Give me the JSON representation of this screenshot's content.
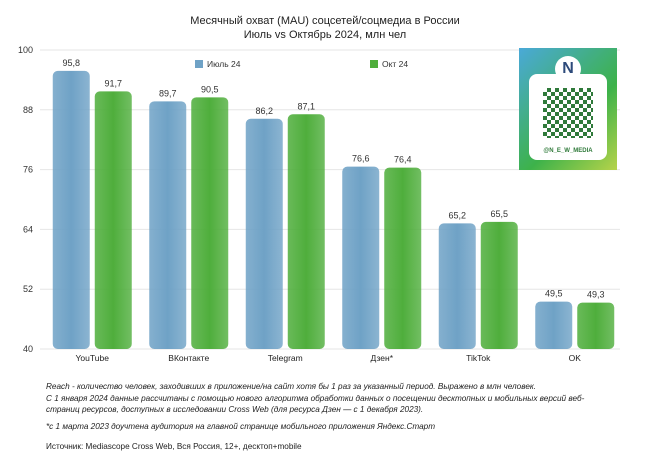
{
  "chart_data": {
    "type": "bar",
    "title": "Месячный охват (MAU) соцсетей/соцмедиа в России",
    "subtitle": "Июль vs Октябрь 2024, млн чел",
    "categories": [
      "YouTube",
      "ВКонтакте",
      "Telegram",
      "Дзен*",
      "TikTok",
      "OK"
    ],
    "series": [
      {
        "name": "Июль 24",
        "color": "#6fa2c6",
        "values": [
          95.8,
          89.7,
          86.2,
          76.6,
          65.2,
          49.5
        ],
        "labels": [
          "95,8",
          "89,7",
          "86,2",
          "76,6",
          "65,2",
          "49,5"
        ]
      },
      {
        "name": "Окт 24",
        "color": "#4fae3c",
        "values": [
          91.7,
          90.5,
          87.1,
          76.4,
          65.5,
          49.3
        ],
        "labels": [
          "91,7",
          "90,5",
          "87,1",
          "76,4",
          "65,5",
          "49,3"
        ]
      }
    ],
    "ylim": [
      40,
      100
    ],
    "yticks": [
      40,
      52,
      64,
      76,
      88,
      100
    ],
    "grid": true,
    "legend": "top"
  },
  "qr": {
    "handle": "@N_E_W_MEDIA",
    "logo": "N"
  },
  "notes": {
    "reach": "Reach - количество человек, заходивших в приложение/на сайт хотя бы 1 раз за указанный период. Выражено в млн человек.",
    "method": "С 1 января 2024 данные рассчитаны с помощью нового алгоритма обработки данных о посещении десктопных и мобильных версий веб-страниц ресурсов, доступных в исследовании Cross Web (для ресурса Дзен — с 1 декабря 2023).",
    "footnote": "*с 1 марта 2023 доучтена аудитория на главной странице мобильного приложения Яндекс.Старт",
    "source": "Источник: Mediascope Cross Web, Вся Россия, 12+, десктоп+mobile"
  }
}
